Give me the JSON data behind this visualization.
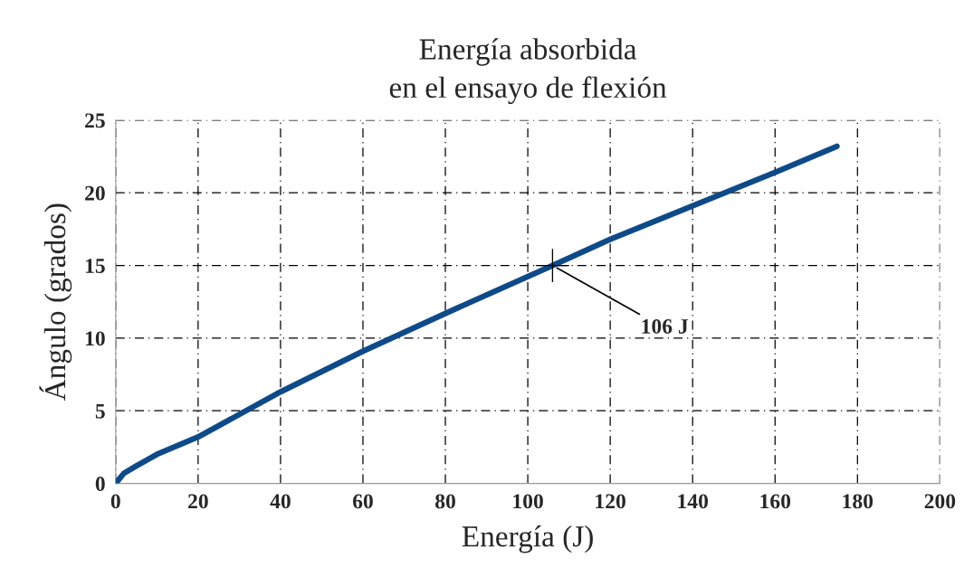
{
  "chart_data": {
    "type": "line",
    "title": "Energía absorbida\nen el ensayo de flexión",
    "xlabel": "Energía (J)",
    "ylabel": "Ángulo (grados)",
    "series": [
      {
        "color": "#0e4a88",
        "x": [
          0,
          2,
          5,
          10,
          20,
          40,
          60,
          80,
          106,
          120,
          140,
          160,
          175
        ],
        "values": [
          0,
          0.7,
          1.2,
          2.0,
          3.2,
          6.3,
          9.1,
          11.7,
          15.0,
          16.8,
          19.1,
          21.4,
          23.2
        ]
      },
      {
        "type": "scatter",
        "color": "#000000",
        "marker": "cross",
        "x": [
          106
        ],
        "values": [
          15
        ]
      }
    ],
    "annotations": [
      {
        "text": "106 J",
        "x": 106,
        "y": 15
      }
    ],
    "xlim": [
      0,
      200
    ],
    "xticks": [
      0,
      20,
      40,
      60,
      80,
      100,
      120,
      140,
      160,
      180,
      200
    ],
    "ylim": [
      0,
      25
    ],
    "yticks": [
      0,
      5,
      10,
      15,
      20,
      25
    ],
    "grid": true,
    "line_style": "solid"
  }
}
